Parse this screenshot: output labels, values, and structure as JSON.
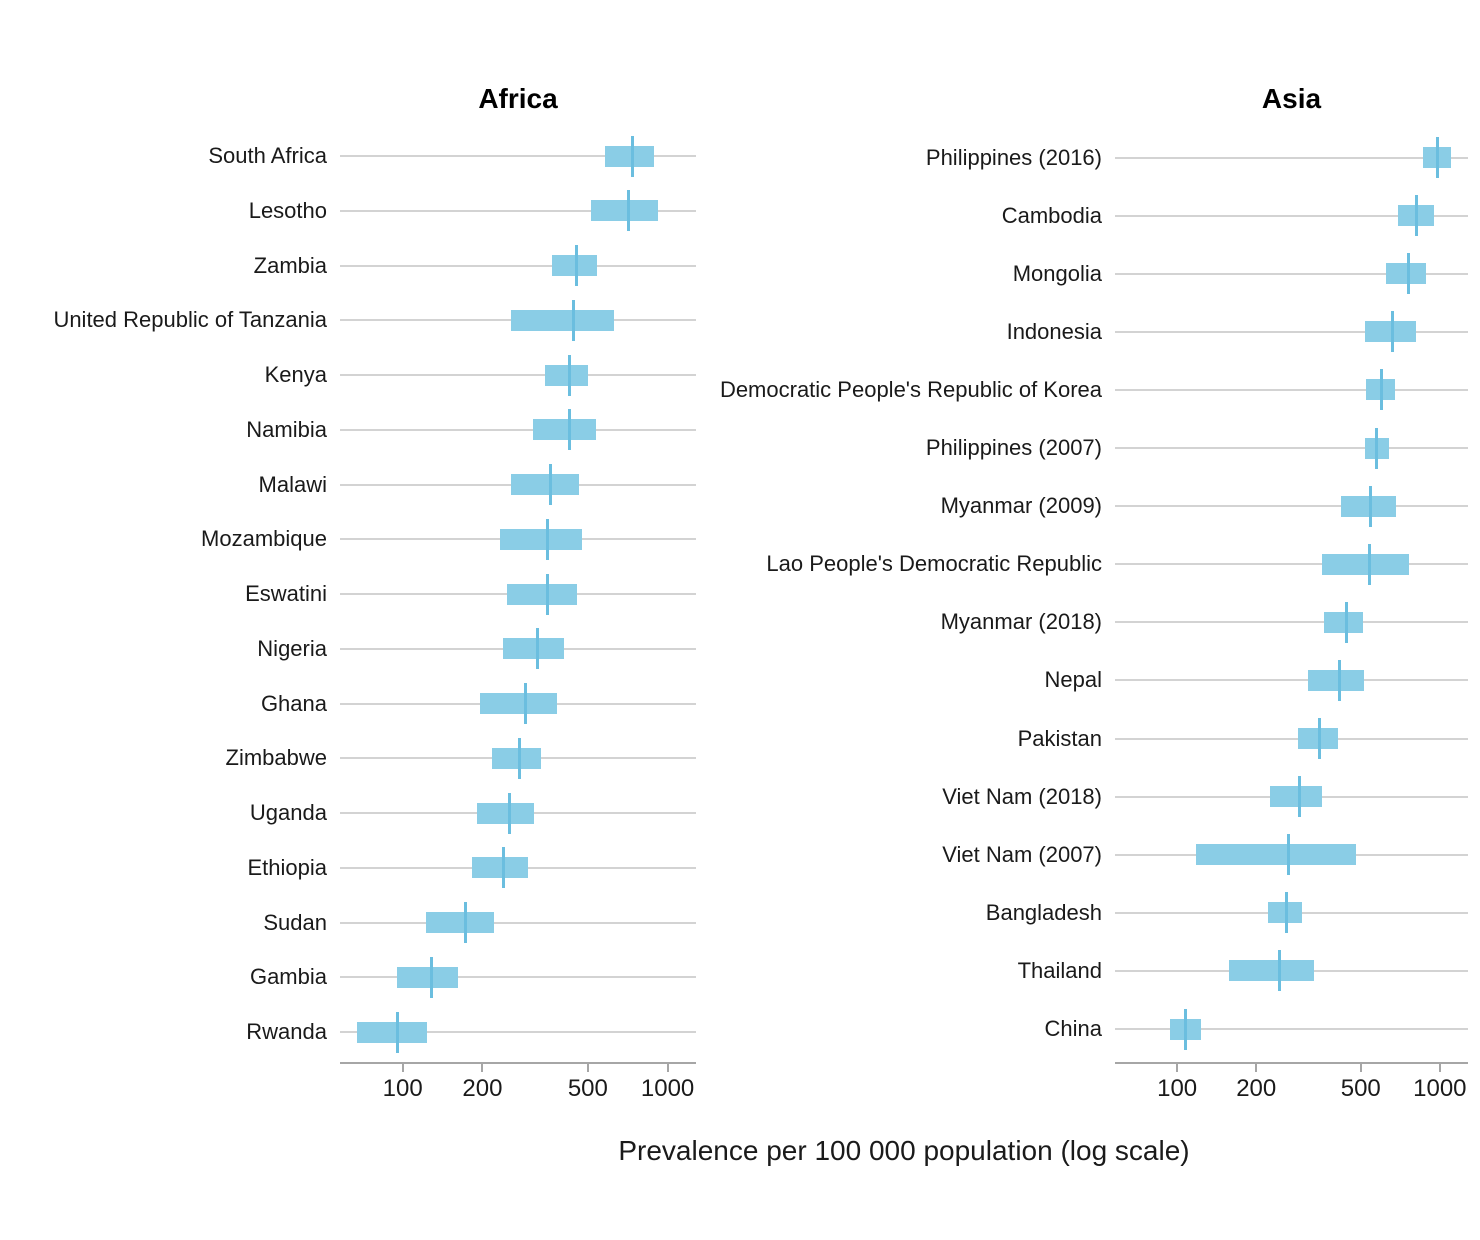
{
  "colors": {
    "box_fill": "#8ACDE6",
    "mid_line": "#6BBEDF",
    "gridline": "#D3D3D3",
    "axis": "#A6A6A6",
    "text": "#1A1A1A"
  },
  "chart_data": {
    "type": "boxplot",
    "title": "",
    "xlabel": "Prevalence per 100 000 population (log scale)",
    "x_scale": "log10",
    "x_ticks": [
      100,
      200,
      500,
      1000
    ],
    "x_domain": [
      58,
      1280
    ],
    "grid": "horizontal rows only",
    "legend": "none",
    "note": "Each row shows an interval (box = confidence interval, vertical line = point estimate) of TB prevalence per 100 000 population.",
    "panels": [
      {
        "title": "Africa",
        "rows": [
          {
            "label": "South Africa",
            "low": 580,
            "mid": 735,
            "high": 885
          },
          {
            "label": "Lesotho",
            "low": 512,
            "mid": 715,
            "high": 920
          },
          {
            "label": "Zambia",
            "low": 365,
            "mid": 455,
            "high": 540
          },
          {
            "label": "United Republic of Tanzania",
            "low": 257,
            "mid": 443,
            "high": 625
          },
          {
            "label": "Kenya",
            "low": 346,
            "mid": 427,
            "high": 500
          },
          {
            "label": "Namibia",
            "low": 310,
            "mid": 425,
            "high": 538
          },
          {
            "label": "Malawi",
            "low": 257,
            "mid": 362,
            "high": 464
          },
          {
            "label": "Mozambique",
            "low": 234,
            "mid": 353,
            "high": 474
          },
          {
            "label": "Eswatini",
            "low": 248,
            "mid": 353,
            "high": 456
          },
          {
            "label": "Nigeria",
            "low": 240,
            "mid": 323,
            "high": 405
          },
          {
            "label": "Ghana",
            "low": 196,
            "mid": 291,
            "high": 383
          },
          {
            "label": "Zimbabwe",
            "low": 218,
            "mid": 276,
            "high": 333
          },
          {
            "label": "Uganda",
            "low": 191,
            "mid": 253,
            "high": 312
          },
          {
            "label": "Ethiopia",
            "low": 183,
            "mid": 240,
            "high": 297
          },
          {
            "label": "Sudan",
            "low": 123,
            "mid": 173,
            "high": 221
          },
          {
            "label": "Gambia",
            "low": 95,
            "mid": 129,
            "high": 162
          },
          {
            "label": "Rwanda",
            "low": 67,
            "mid": 96,
            "high": 124
          }
        ]
      },
      {
        "title": "Asia",
        "rows": [
          {
            "label": "Philippines (2016)",
            "low": 865,
            "mid": 980,
            "high": 1100
          },
          {
            "label": "Cambodia",
            "low": 690,
            "mid": 817,
            "high": 950
          },
          {
            "label": "Mongolia",
            "low": 623,
            "mid": 757,
            "high": 884
          },
          {
            "label": "Indonesia",
            "low": 520,
            "mid": 660,
            "high": 815
          },
          {
            "label": "Democratic People's Republic of Korea",
            "low": 525,
            "mid": 600,
            "high": 675
          },
          {
            "label": "Philippines (2007)",
            "low": 518,
            "mid": 575,
            "high": 638
          },
          {
            "label": "Myanmar (2009)",
            "low": 420,
            "mid": 545,
            "high": 680
          },
          {
            "label": "Lao People's Democratic Republic",
            "low": 355,
            "mid": 540,
            "high": 765
          },
          {
            "label": "Myanmar (2018)",
            "low": 362,
            "mid": 440,
            "high": 512
          },
          {
            "label": "Nepal",
            "low": 315,
            "mid": 416,
            "high": 515
          },
          {
            "label": "Pakistan",
            "low": 289,
            "mid": 348,
            "high": 411
          },
          {
            "label": "Viet Nam (2018)",
            "low": 226,
            "mid": 291,
            "high": 355
          },
          {
            "label": "Viet Nam (2007)",
            "low": 118,
            "mid": 266,
            "high": 479
          },
          {
            "label": "Bangladesh",
            "low": 222,
            "mid": 260,
            "high": 300
          },
          {
            "label": "Thailand",
            "low": 157,
            "mid": 245,
            "high": 332
          },
          {
            "label": "China",
            "low": 94,
            "mid": 108,
            "high": 123
          }
        ]
      }
    ]
  }
}
